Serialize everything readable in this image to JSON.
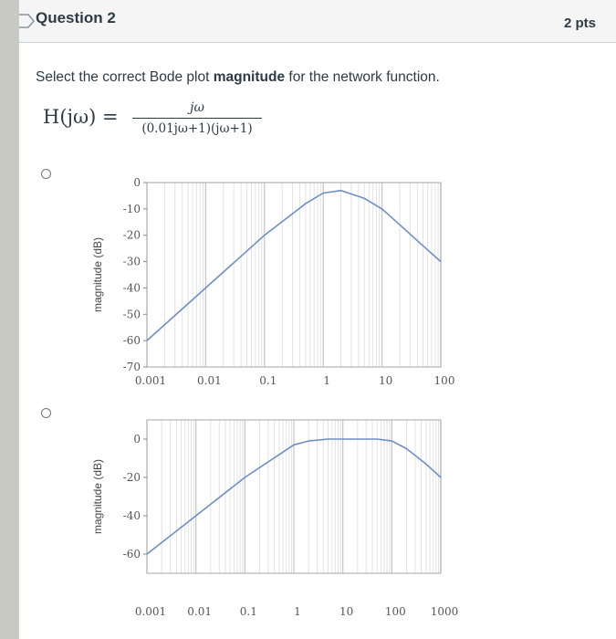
{
  "question": {
    "title": "Question 2",
    "points": "2 pts",
    "prompt_before": "Select the correct Bode plot ",
    "prompt_bold": "magnitude",
    "prompt_after": " for the network function.",
    "formula": {
      "lhs": "H(jω)  =",
      "numerator": "jω",
      "denominator": "(0.01jω+1)(jω+1)"
    }
  },
  "colors": {
    "curve": "#6f8fc4",
    "grid_major": "#c8c8c8",
    "grid_minor": "#e2e2e2",
    "frame": "#b5b5b5"
  },
  "chart_data": [
    {
      "type": "line",
      "title": "",
      "xlabel": "",
      "ylabel": "magnitude (dB)",
      "x_scale": "log",
      "xlim": [
        0.001,
        100
      ],
      "ylim": [
        -70,
        0
      ],
      "x_tick_labels": [
        "0.001",
        "0.01",
        "0.1",
        "1",
        "10",
        "100"
      ],
      "y_tick_labels": [
        "0",
        "-10",
        "-20",
        "-30",
        "-40",
        "-50",
        "-60",
        "-70"
      ],
      "series": [
        {
          "x": [
            0.001,
            0.01,
            0.1,
            0.5,
            1,
            2,
            5,
            10,
            20,
            50,
            100
          ],
          "y": [
            -60,
            -40,
            -20,
            -8,
            -4,
            -3,
            -6,
            -10,
            -16,
            -24,
            -30
          ]
        }
      ]
    },
    {
      "type": "line",
      "title": "",
      "xlabel": "",
      "ylabel": "magnitude (dB)",
      "x_scale": "log",
      "xlim": [
        0.001,
        1000
      ],
      "ylim": [
        -70,
        10
      ],
      "x_tick_labels": [
        "0.001",
        "0.01",
        "0.1",
        "1",
        "10",
        "100",
        "1000"
      ],
      "y_tick_labels": [
        "0",
        "-20",
        "-40",
        "-60"
      ],
      "series": [
        {
          "x": [
            0.001,
            0.01,
            0.1,
            1,
            2,
            5,
            10,
            50,
            100,
            200,
            500,
            1000
          ],
          "y": [
            -60,
            -40,
            -20,
            -3,
            -1,
            0,
            0,
            0,
            -1,
            -5,
            -13,
            -20
          ]
        }
      ]
    }
  ]
}
